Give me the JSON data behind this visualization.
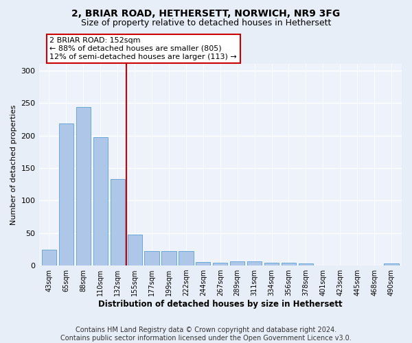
{
  "title": "2, BRIAR ROAD, HETHERSETT, NORWICH, NR9 3FG",
  "subtitle": "Size of property relative to detached houses in Hethersett",
  "xlabel_bottom": "Distribution of detached houses by size in Hethersett",
  "ylabel": "Number of detached properties",
  "categories": [
    "43sqm",
    "65sqm",
    "88sqm",
    "110sqm",
    "132sqm",
    "155sqm",
    "177sqm",
    "199sqm",
    "222sqm",
    "244sqm",
    "267sqm",
    "289sqm",
    "311sqm",
    "334sqm",
    "356sqm",
    "378sqm",
    "401sqm",
    "423sqm",
    "445sqm",
    "468sqm",
    "490sqm"
  ],
  "values": [
    24,
    219,
    244,
    197,
    133,
    48,
    22,
    22,
    22,
    5,
    4,
    6,
    6,
    4,
    4,
    3,
    0,
    0,
    0,
    0,
    3
  ],
  "bar_color": "#aec6e8",
  "bar_edge_color": "#5a9fd4",
  "vline_x_index": 5,
  "vline_color": "#cc0000",
  "annotation_text": "2 BRIAR ROAD: 152sqm\n← 88% of detached houses are smaller (805)\n12% of semi-detached houses are larger (113) →",
  "annotation_box_color": "#ffffff",
  "annotation_box_edge": "#cc0000",
  "ylim": [
    0,
    310
  ],
  "yticks": [
    0,
    50,
    100,
    150,
    200,
    250,
    300
  ],
  "bg_color": "#e8eef7",
  "plot_bg_color": "#edf2fb",
  "footer": "Contains HM Land Registry data © Crown copyright and database right 2024.\nContains public sector information licensed under the Open Government Licence v3.0.",
  "title_fontsize": 10,
  "subtitle_fontsize": 9,
  "footer_fontsize": 7,
  "annotation_fontsize": 8
}
